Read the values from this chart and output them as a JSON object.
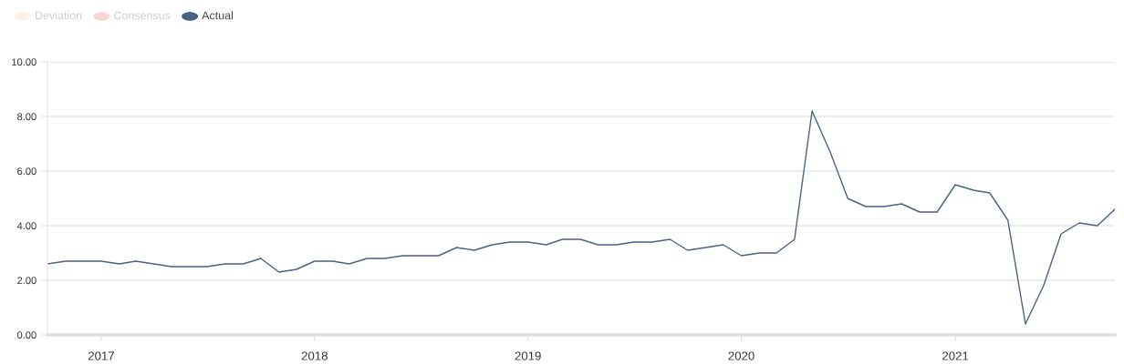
{
  "chart_data": {
    "type": "line",
    "x": [
      "2016-10-01",
      "2016-11-01",
      "2016-12-01",
      "2017-01-01",
      "2017-02-01",
      "2017-03-01",
      "2017-04-01",
      "2017-05-01",
      "2017-06-01",
      "2017-07-01",
      "2017-08-01",
      "2017-09-01",
      "2017-10-01",
      "2017-11-01",
      "2017-12-01",
      "2018-01-01",
      "2018-02-01",
      "2018-03-01",
      "2018-04-01",
      "2018-05-01",
      "2018-06-01",
      "2018-07-01",
      "2018-08-01",
      "2018-09-01",
      "2018-10-01",
      "2018-11-01",
      "2018-12-01",
      "2019-01-01",
      "2019-02-01",
      "2019-03-01",
      "2019-04-01",
      "2019-05-01",
      "2019-06-01",
      "2019-07-01",
      "2019-08-01",
      "2019-09-01",
      "2019-10-01",
      "2019-11-01",
      "2019-12-01",
      "2020-01-01",
      "2020-02-01",
      "2020-03-01",
      "2020-04-01",
      "2020-05-01",
      "2020-06-01",
      "2020-07-01",
      "2020-08-01",
      "2020-09-01",
      "2020-10-01",
      "2020-11-01",
      "2020-12-01",
      "2021-01-01",
      "2021-02-01",
      "2021-03-01",
      "2021-04-01",
      "2021-05-01",
      "2021-06-01",
      "2021-07-01",
      "2021-08-01",
      "2021-09-01",
      "2021-10-01"
    ],
    "series": [
      {
        "name": "Deviation",
        "color": "#fdf1e8",
        "values": [
          null,
          null,
          null,
          null,
          null,
          null,
          null,
          null,
          null,
          null,
          null,
          null,
          null,
          null,
          null,
          null,
          null,
          null,
          null,
          null,
          null,
          null,
          null,
          null,
          null,
          null,
          null,
          null,
          null,
          null,
          null,
          null,
          null,
          null,
          null,
          null,
          null,
          null,
          null,
          null,
          null,
          null,
          null,
          null,
          null,
          null,
          null,
          null,
          null,
          null,
          null,
          null,
          null,
          null,
          null,
          null,
          null,
          null,
          null,
          null,
          null
        ]
      },
      {
        "name": "Consensus",
        "color": "#f6d8d8",
        "values": [
          null,
          null,
          null,
          null,
          null,
          null,
          null,
          null,
          null,
          null,
          null,
          null,
          null,
          null,
          null,
          null,
          null,
          null,
          null,
          null,
          null,
          null,
          null,
          null,
          null,
          null,
          null,
          null,
          null,
          null,
          null,
          null,
          null,
          null,
          null,
          null,
          null,
          null,
          null,
          null,
          null,
          null,
          null,
          null,
          null,
          null,
          null,
          null,
          null,
          null,
          null,
          null,
          null,
          null,
          null,
          null,
          null,
          null,
          null,
          null,
          null
        ]
      },
      {
        "name": "Actual",
        "color": "#4a6283",
        "values": [
          2.6,
          2.7,
          2.7,
          2.7,
          2.6,
          2.7,
          2.6,
          2.5,
          2.5,
          2.5,
          2.6,
          2.6,
          2.8,
          2.3,
          2.4,
          2.7,
          2.7,
          2.6,
          2.8,
          2.8,
          2.9,
          2.9,
          2.9,
          3.2,
          3.1,
          3.3,
          3.4,
          3.4,
          3.3,
          3.5,
          3.5,
          3.3,
          3.3,
          3.4,
          3.4,
          3.5,
          3.1,
          3.2,
          3.3,
          2.9,
          3.0,
          3.0,
          3.5,
          8.2,
          6.7,
          5.0,
          4.7,
          4.7,
          4.8,
          4.5,
          4.5,
          5.5,
          5.3,
          5.2,
          4.2,
          0.4,
          1.8,
          3.7,
          4.1,
          4.0,
          4.6
        ]
      }
    ],
    "xlim": [
      "2016-10-01",
      "2021-10-01"
    ],
    "xticks": [
      {
        "value": "2017-01-01",
        "label": "2017"
      },
      {
        "value": "2018-01-01",
        "label": "2018"
      },
      {
        "value": "2019-01-01",
        "label": "2019"
      },
      {
        "value": "2020-01-01",
        "label": "2020"
      },
      {
        "value": "2021-01-01",
        "label": "2021"
      }
    ],
    "ylim": [
      0,
      10
    ],
    "yticks": [
      {
        "value": 0,
        "label": "0.00"
      },
      {
        "value": 2,
        "label": "2.00"
      },
      {
        "value": 4,
        "label": "4.00"
      },
      {
        "value": 6,
        "label": "6.00"
      },
      {
        "value": 8,
        "label": "8.00"
      },
      {
        "value": 10,
        "label": "10.00"
      }
    ],
    "grid": "y",
    "legend": "top left",
    "marker": "none",
    "line_style": "solid"
  }
}
